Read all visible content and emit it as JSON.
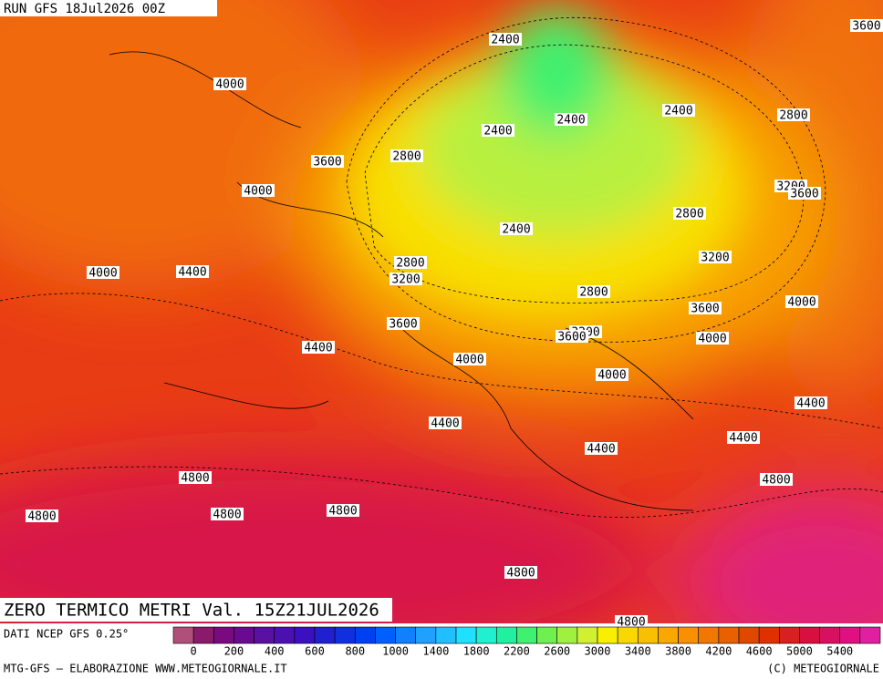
{
  "header": {
    "run": "RUN GFS 18Jul2026 00Z"
  },
  "map": {
    "contour_labels": [
      4000,
      2400,
      2400,
      2400,
      2400,
      3600,
      2800,
      4000,
      2800,
      3200,
      3600,
      2800,
      2400,
      4000,
      4400,
      2800,
      3200,
      3200,
      2800,
      3600,
      4000,
      3600,
      3200,
      3600,
      4400,
      4000,
      4000,
      4000,
      4400,
      4400,
      4400,
      4400,
      4800,
      4800,
      4800,
      4800,
      4800,
      4800,
      4800,
      3600
    ]
  },
  "footer": {
    "title": "ZERO TERMICO METRI Val. 15Z21JUL2026",
    "source": "DATI NCEP GFS 0.25°",
    "credit": "MTG-GFS — ELABORAZIONE WWW.METEOGIORNALE.IT",
    "copyright": "(C) METEOGIORNALE"
  },
  "colorbar": {
    "colors": [
      "#b0507a",
      "#8a1a6a",
      "#7a0a80",
      "#6a0a90",
      "#5a10a0",
      "#4a10b0",
      "#3a10c0",
      "#2020d0",
      "#1030e0",
      "#0040f0",
      "#0060ff",
      "#1080ff",
      "#20a0ff",
      "#20c0ff",
      "#20e0ff",
      "#20f0d0",
      "#20f0a0",
      "#40f070",
      "#70f050",
      "#a0f040",
      "#d0f030",
      "#f8f000",
      "#f8d800",
      "#f8c000",
      "#f8a800",
      "#f89000",
      "#f07800",
      "#e86000",
      "#e04800",
      "#e03000",
      "#d82020",
      "#d81040",
      "#d81060",
      "#e01080",
      "#e020a0"
    ],
    "ticks": [
      0,
      200,
      400,
      600,
      800,
      1000,
      1400,
      1800,
      2200,
      2600,
      3000,
      3400,
      3800,
      4200,
      4600,
      5000,
      5400
    ]
  }
}
